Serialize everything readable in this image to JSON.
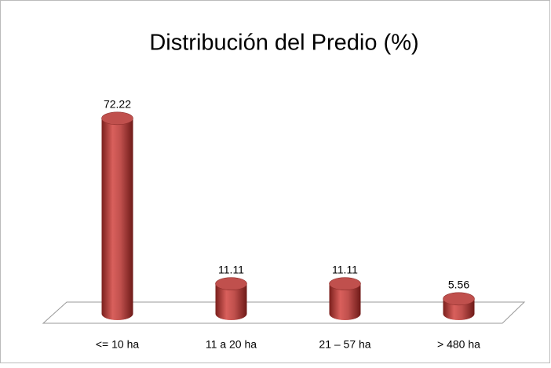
{
  "chart_data": {
    "type": "bar3d",
    "title": "Distribución del Predio (%)",
    "categories": [
      "<= 10 ha",
      "11 a 20 ha",
      "21 – 57 ha",
      "> 480 ha"
    ],
    "values": [
      72.22,
      11.11,
      11.11,
      5.56
    ],
    "color": "#c0504d"
  }
}
